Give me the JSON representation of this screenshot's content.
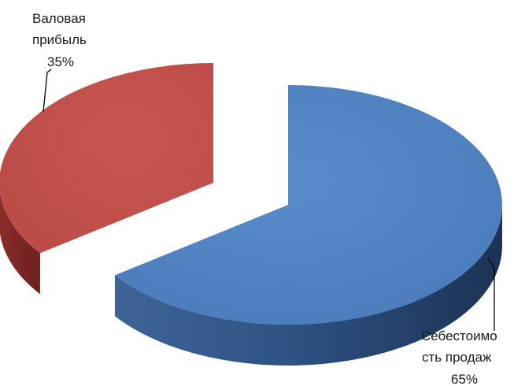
{
  "chart_data": {
    "type": "pie",
    "style": "3d-exploded",
    "slices": [
      {
        "label_line1": "Себестоимо",
        "label_line2": "сть продаж",
        "percent_label": "65%",
        "value": 65,
        "color": "#4f81bd",
        "side_color": "#2b4a74"
      },
      {
        "label_line1": "Валовая",
        "label_line2": "прибыль",
        "percent_label": "35%",
        "value": 35,
        "color": "#c0504d",
        "side_color": "#7a2523"
      }
    ]
  }
}
